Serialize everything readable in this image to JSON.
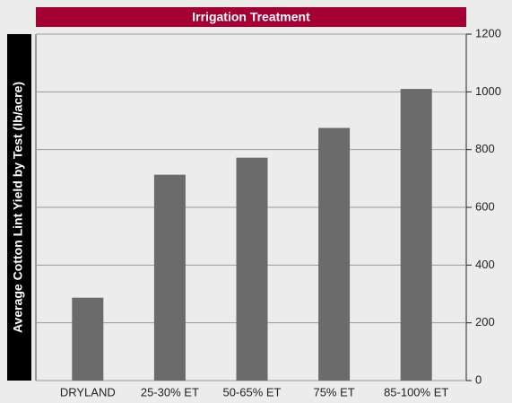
{
  "chart_data": {
    "type": "bar",
    "title": "Irrigation Treatment",
    "y_label": "Average Cotton Lint Yield by Test (lb/acre)",
    "categories": [
      "DRYLAND",
      "25-30% ET",
      "50-65% ET",
      "75% ET",
      "85-100% ET"
    ],
    "values": [
      287,
      713,
      772,
      875,
      1010
    ],
    "color": "#6b6b6b",
    "ylim": [
      0,
      1200
    ],
    "yticks": [
      0,
      200,
      400,
      600,
      800,
      1000,
      1200
    ],
    "grid": true,
    "y_axis_side": "right"
  }
}
